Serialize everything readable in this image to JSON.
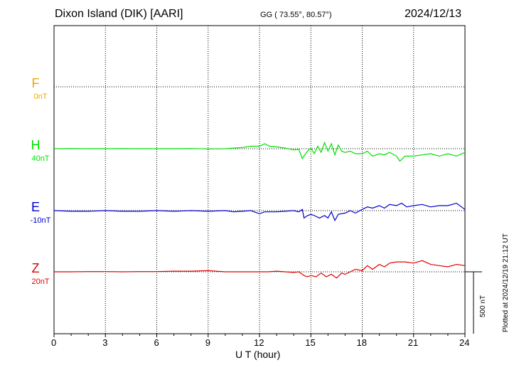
{
  "header": {
    "station": "Dixon Island (DIK)  [AARI]",
    "coords": "GG ( 73.55°,  80.57°)",
    "date": "2024/12/13"
  },
  "plotted_note": "Plotted at 2024/12/19 21:12 UT",
  "colors": {
    "F": "#f0a800",
    "H": "#00e000",
    "E": "#0000cc",
    "Z": "#e00000",
    "grid": "#000000"
  },
  "chart_data": {
    "type": "line",
    "title": "",
    "xlabel": "U T (hour)",
    "ylabel": "",
    "xlim": [
      0,
      24
    ],
    "xticks": [
      0,
      3,
      6,
      9,
      12,
      15,
      18,
      21,
      24
    ],
    "xtick_labels": [
      "0",
      "3",
      "6",
      "9",
      "12",
      "15",
      "18",
      "21",
      "24"
    ],
    "scale_bar": {
      "label": "500 nT",
      "value_nT": 500
    },
    "channels": [
      {
        "name": "F",
        "baseline": "0nT",
        "color": "#f0a800",
        "values": []
      },
      {
        "name": "H",
        "baseline": "40nT",
        "color": "#00e000",
        "x": [
          0,
          1,
          2,
          3,
          4,
          5,
          6,
          7,
          8,
          9,
          10,
          10.5,
          11,
          11.5,
          12,
          12.3,
          12.6,
          13,
          13.5,
          14,
          14.3,
          14.5,
          14.6,
          14.8,
          15,
          15.2,
          15.4,
          15.6,
          15.8,
          16,
          16.2,
          16.4,
          16.6,
          16.8,
          17,
          17.3,
          17.6,
          18,
          18.3,
          18.6,
          19,
          19.3,
          19.6,
          20,
          20.2,
          20.5,
          21,
          21.5,
          22,
          22.5,
          23,
          23.5,
          24
        ],
        "y": [
          0,
          2,
          0,
          0,
          2,
          0,
          0,
          0,
          2,
          -2,
          0,
          5,
          10,
          20,
          20,
          40,
          20,
          15,
          5,
          -10,
          -5,
          -80,
          -60,
          -20,
          5,
          -40,
          20,
          -30,
          50,
          -20,
          40,
          -50,
          30,
          -20,
          -30,
          -20,
          -40,
          -40,
          -20,
          -60,
          -40,
          -50,
          -30,
          -60,
          -100,
          -60,
          -60,
          -50,
          -40,
          -60,
          -40,
          -60,
          -30
        ]
      },
      {
        "name": "E",
        "baseline": "-10nT",
        "color": "#0000cc",
        "x": [
          0,
          1,
          2,
          3,
          4,
          5,
          6,
          7,
          8,
          9,
          10,
          10.5,
          11,
          11.5,
          12,
          12.3,
          13,
          13.5,
          14,
          14.3,
          14.5,
          14.6,
          14.8,
          15,
          15.2,
          15.5,
          15.8,
          16,
          16.2,
          16.4,
          16.6,
          17,
          17.3,
          17.6,
          18,
          18.3,
          18.6,
          19,
          19.3,
          19.6,
          20,
          20.3,
          20.6,
          21,
          21.5,
          22,
          22.5,
          23,
          23.5,
          24
        ],
        "y": [
          0,
          -5,
          -5,
          0,
          -5,
          -5,
          0,
          -5,
          0,
          -5,
          0,
          -10,
          -5,
          0,
          -25,
          -10,
          -10,
          -5,
          0,
          -10,
          10,
          -60,
          -40,
          -30,
          -40,
          -60,
          -40,
          -60,
          -10,
          -80,
          -30,
          -20,
          0,
          -20,
          10,
          30,
          20,
          40,
          20,
          50,
          40,
          60,
          30,
          40,
          50,
          30,
          40,
          40,
          60,
          10
        ]
      },
      {
        "name": "Z",
        "baseline": "20nT",
        "color": "#e00000",
        "x": [
          0,
          1,
          2,
          3,
          4,
          5,
          6,
          7,
          8,
          9,
          10,
          11,
          12,
          12.5,
          13,
          13.5,
          14,
          14.3,
          14.6,
          14.8,
          15,
          15.3,
          15.6,
          15.9,
          16.2,
          16.5,
          16.8,
          17,
          17.3,
          17.6,
          18,
          18.3,
          18.6,
          19,
          19.3,
          19.6,
          20,
          20.5,
          21,
          21.5,
          22,
          22.5,
          23,
          23.5,
          24
        ],
        "y": [
          0,
          0,
          2,
          2,
          0,
          2,
          2,
          5,
          5,
          10,
          0,
          0,
          0,
          0,
          5,
          0,
          -5,
          0,
          -30,
          -40,
          -30,
          -40,
          -10,
          -40,
          -20,
          -50,
          -10,
          -20,
          0,
          20,
          10,
          50,
          20,
          60,
          40,
          70,
          80,
          80,
          70,
          90,
          60,
          50,
          40,
          60,
          50
        ]
      }
    ]
  }
}
